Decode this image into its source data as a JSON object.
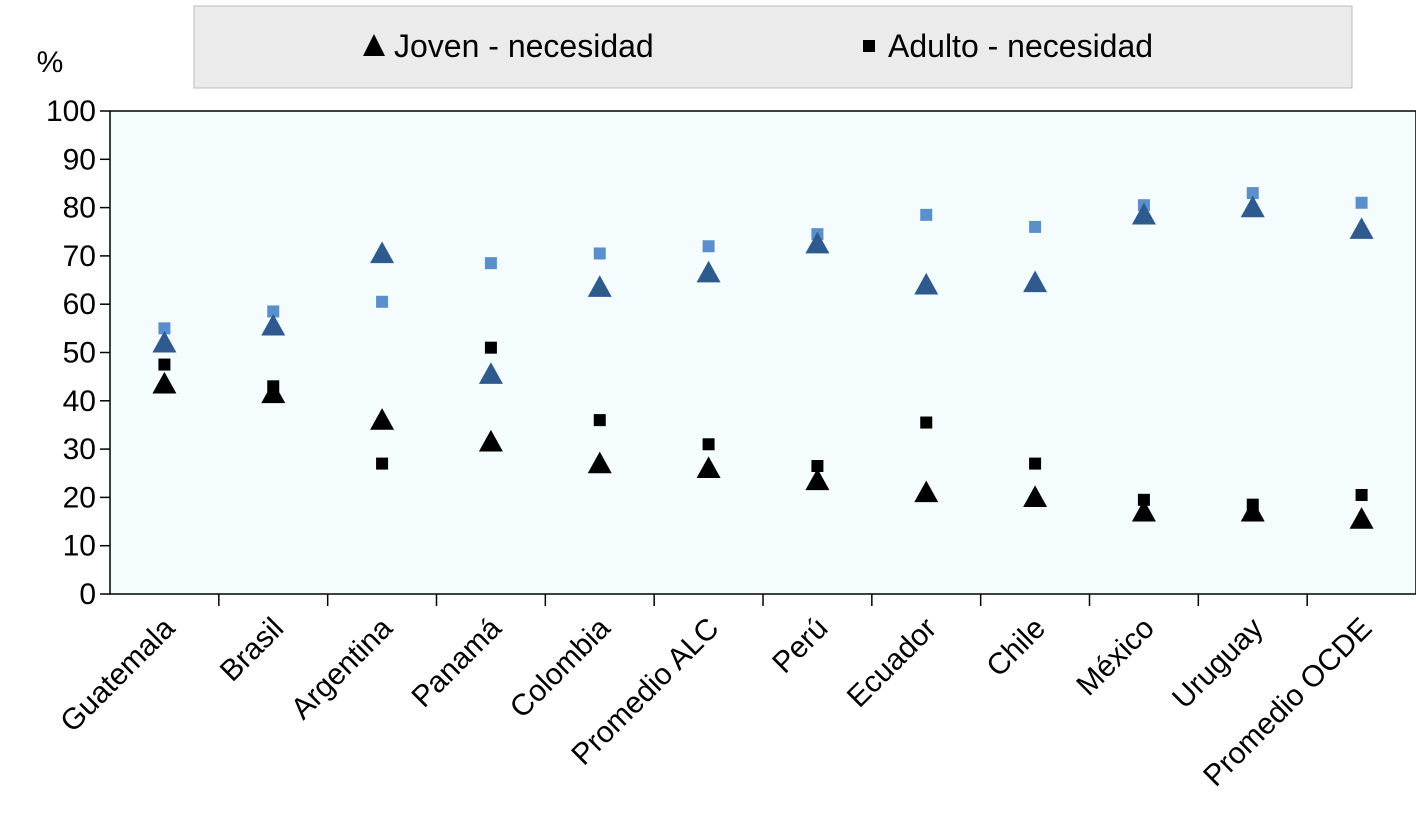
{
  "chart_data": {
    "type": "scatter",
    "title": "",
    "xlabel": "",
    "ylabel": "%",
    "ylim": [
      0,
      100
    ],
    "yticks": [
      0,
      10,
      20,
      30,
      40,
      50,
      60,
      70,
      80,
      90,
      100
    ],
    "categories": [
      "Guatemala",
      "Brasil",
      "Argentina",
      "Panamá",
      "Colombia",
      "Promedio ALC",
      "Perú",
      "Ecuador",
      "Chile",
      "México",
      "Uruguay",
      "Promedio OCDE"
    ],
    "legend_position": "top",
    "legend": [
      {
        "label": "Joven - necesidad",
        "marker": "triangle",
        "color": "#000000"
      },
      {
        "label": "Adulto - necesidad",
        "marker": "square",
        "color": "#000000"
      }
    ],
    "series": [
      {
        "name": "Joven - necesidad",
        "marker": "triangle",
        "color": "#000000",
        "values": [
          43.5,
          41.5,
          36,
          31.5,
          27,
          26,
          23.5,
          21,
          20,
          17,
          17,
          15.5
        ]
      },
      {
        "name": "Adulto - necesidad",
        "marker": "square",
        "color": "#000000",
        "values": [
          47.5,
          43,
          27,
          51,
          36,
          31,
          26.5,
          35.5,
          27,
          19.5,
          18.5,
          20.5
        ]
      },
      {
        "marker": "triangle",
        "color": "#2E5A8E",
        "values": [
          52,
          55.5,
          70.5,
          45.5,
          63.5,
          66.5,
          72.5,
          64,
          64.5,
          78.5,
          80,
          75.5
        ]
      },
      {
        "marker": "square",
        "color": "#5B8FCC",
        "values": [
          55,
          58.5,
          60.5,
          68.5,
          70.5,
          72,
          74.5,
          78.5,
          76,
          80.5,
          83,
          81
        ]
      }
    ],
    "colors": {
      "plot_background": "#F5FCFD",
      "legend_background": "#EBEBEB"
    }
  }
}
